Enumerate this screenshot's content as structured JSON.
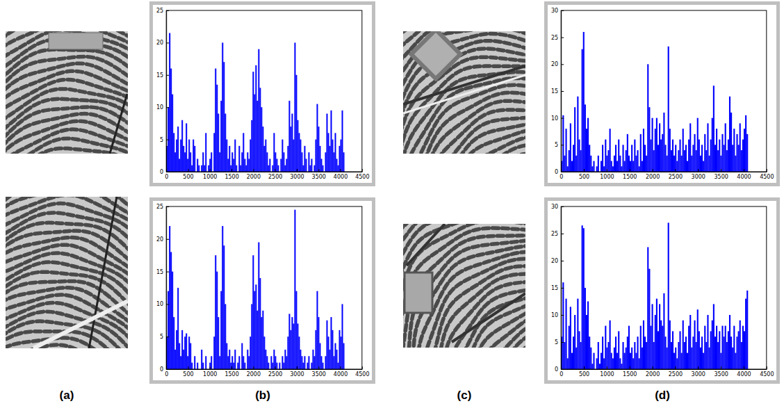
{
  "chart_data": [
    {
      "type": "histogram",
      "color": "#0000ff",
      "grid": false,
      "xlim": [
        0,
        4500
      ],
      "xticks": [
        0,
        500,
        1000,
        1500,
        2000,
        2500,
        3000,
        3500,
        4000,
        4500
      ],
      "ylim": [
        0,
        25
      ],
      "yticks": [
        0,
        5,
        10,
        15,
        20,
        25
      ],
      "bins": [
        0,
        32,
        64,
        96,
        128,
        160,
        192,
        224,
        256,
        288,
        320,
        352,
        384,
        416,
        448,
        480,
        512,
        544,
        576,
        608,
        640,
        672,
        704,
        736,
        768,
        800,
        832,
        864,
        896,
        928,
        960,
        992,
        1024,
        1056,
        1088,
        1120,
        1152,
        1184,
        1216,
        1248,
        1280,
        1312,
        1344,
        1376,
        1408,
        1440,
        1472,
        1504,
        1536,
        1568,
        1600,
        1632,
        1664,
        1696,
        1728,
        1760,
        1792,
        1824,
        1856,
        1888,
        1920,
        1952,
        1984,
        2016,
        2048,
        2080,
        2112,
        2144,
        2176,
        2208,
        2240,
        2272,
        2304,
        2336,
        2368,
        2400,
        2432,
        2464,
        2496,
        2528,
        2560,
        2592,
        2624,
        2656,
        2688,
        2720,
        2752,
        2784,
        2816,
        2848,
        2880,
        2912,
        2944,
        2976,
        3008,
        3040,
        3072,
        3104,
        3136,
        3168,
        3200,
        3232,
        3264,
        3296,
        3328,
        3360,
        3392,
        3424,
        3456,
        3488,
        3520,
        3552,
        3584,
        3616,
        3648,
        3680,
        3712,
        3744,
        3776,
        3808,
        3840,
        3872,
        3904,
        3936,
        3968,
        4000,
        4032,
        4064,
        4096
      ],
      "values": [
        4,
        10,
        21.5,
        16,
        12,
        6,
        3,
        5,
        7,
        2,
        5,
        8,
        4,
        3,
        7.5,
        2,
        5,
        3,
        1,
        5,
        4,
        0,
        2,
        1,
        0,
        1,
        3,
        1,
        6,
        0,
        1,
        2,
        3,
        0,
        6,
        16,
        13.5,
        9,
        3,
        11,
        20,
        17,
        9,
        5,
        2,
        4,
        1,
        3,
        2,
        5,
        1,
        0,
        4,
        1,
        3,
        6,
        2,
        1,
        3,
        2,
        5,
        8,
        15.5,
        12,
        16.5,
        11,
        19,
        13,
        10,
        7,
        4,
        5,
        3,
        1,
        2,
        0,
        1,
        6,
        3,
        2,
        1,
        0,
        2,
        5,
        3,
        1,
        2,
        4,
        11,
        7,
        9,
        5,
        20,
        15,
        8,
        6,
        5,
        3,
        1,
        4,
        2,
        0,
        3,
        1,
        2,
        0,
        1,
        5,
        10.5,
        7,
        4,
        2,
        1,
        0,
        3,
        9,
        6,
        4,
        9.5,
        5,
        3,
        6,
        2,
        1,
        4,
        5,
        9.5,
        3
      ]
    },
    {
      "type": "histogram",
      "color": "#0000ff",
      "grid": false,
      "xlim": [
        0,
        4500
      ],
      "xticks": [
        0,
        500,
        1000,
        1500,
        2000,
        2500,
        3000,
        3500,
        4000,
        4500
      ],
      "ylim": [
        0,
        25
      ],
      "yticks": [
        0,
        5,
        10,
        15,
        20,
        25
      ],
      "bins": [
        0,
        32,
        64,
        96,
        128,
        160,
        192,
        224,
        256,
        288,
        320,
        352,
        384,
        416,
        448,
        480,
        512,
        544,
        576,
        608,
        640,
        672,
        704,
        736,
        768,
        800,
        832,
        864,
        896,
        928,
        960,
        992,
        1024,
        1056,
        1088,
        1120,
        1152,
        1184,
        1216,
        1248,
        1280,
        1312,
        1344,
        1376,
        1408,
        1440,
        1472,
        1504,
        1536,
        1568,
        1600,
        1632,
        1664,
        1696,
        1728,
        1760,
        1792,
        1824,
        1856,
        1888,
        1920,
        1952,
        1984,
        2016,
        2048,
        2080,
        2112,
        2144,
        2176,
        2208,
        2240,
        2272,
        2304,
        2336,
        2368,
        2400,
        2432,
        2464,
        2496,
        2528,
        2560,
        2592,
        2624,
        2656,
        2688,
        2720,
        2752,
        2784,
        2816,
        2848,
        2880,
        2912,
        2944,
        2976,
        3008,
        3040,
        3072,
        3104,
        3136,
        3168,
        3200,
        3232,
        3264,
        3296,
        3328,
        3360,
        3392,
        3424,
        3456,
        3488,
        3520,
        3552,
        3584,
        3616,
        3648,
        3680,
        3712,
        3744,
        3776,
        3808,
        3840,
        3872,
        3904,
        3936,
        3968,
        4000,
        4032,
        4064,
        4096
      ],
      "values": [
        5,
        12,
        22,
        18,
        15,
        8,
        3,
        6,
        12.5,
        4,
        2,
        6,
        3,
        5,
        5.5,
        2,
        5,
        4,
        1,
        0,
        2,
        0,
        1,
        0,
        0,
        3,
        1,
        0,
        2,
        0,
        0,
        1,
        2,
        0,
        5,
        17.5,
        15,
        8,
        2,
        12,
        22,
        19,
        10,
        4,
        2,
        3,
        1,
        2,
        1,
        3,
        0,
        1,
        2,
        0,
        4,
        2,
        1,
        0,
        3,
        2,
        5,
        10,
        17.5,
        12,
        13,
        9,
        19.5,
        14,
        8,
        9,
        5,
        3,
        2,
        1,
        0,
        2,
        1,
        3,
        2,
        1,
        0,
        1,
        0,
        2,
        1,
        3,
        2,
        5,
        8.5,
        6,
        8,
        7,
        24.5,
        12,
        7,
        5,
        3,
        2,
        1,
        2,
        0,
        1,
        2,
        0,
        1,
        3,
        2,
        6,
        12,
        8,
        4,
        2,
        1,
        0,
        2,
        7.5,
        5,
        3,
        8,
        6,
        2,
        4,
        3,
        1,
        6,
        5,
        10,
        4
      ]
    },
    {
      "type": "histogram",
      "color": "#0000ff",
      "grid": false,
      "xlim": [
        0,
        4500
      ],
      "xticks": [
        0,
        500,
        1000,
        1500,
        2000,
        2500,
        3000,
        3500,
        4000,
        4500
      ],
      "ylim": [
        0,
        30
      ],
      "yticks": [
        0,
        5,
        10,
        15,
        20,
        25,
        30
      ],
      "bins": [
        0,
        32,
        64,
        96,
        128,
        160,
        192,
        224,
        256,
        288,
        320,
        352,
        384,
        416,
        448,
        480,
        512,
        544,
        576,
        608,
        640,
        672,
        704,
        736,
        768,
        800,
        832,
        864,
        896,
        928,
        960,
        992,
        1024,
        1056,
        1088,
        1120,
        1152,
        1184,
        1216,
        1248,
        1280,
        1312,
        1344,
        1376,
        1408,
        1440,
        1472,
        1504,
        1536,
        1568,
        1600,
        1632,
        1664,
        1696,
        1728,
        1760,
        1792,
        1824,
        1856,
        1888,
        1920,
        1952,
        1984,
        2016,
        2048,
        2080,
        2112,
        2144,
        2176,
        2208,
        2240,
        2272,
        2304,
        2336,
        2368,
        2400,
        2432,
        2464,
        2496,
        2528,
        2560,
        2592,
        2624,
        2656,
        2688,
        2720,
        2752,
        2784,
        2816,
        2848,
        2880,
        2912,
        2944,
        2976,
        3008,
        3040,
        3072,
        3104,
        3136,
        3168,
        3200,
        3232,
        3264,
        3296,
        3328,
        3360,
        3392,
        3424,
        3456,
        3488,
        3520,
        3552,
        3584,
        3616,
        3648,
        3680,
        3712,
        3744,
        3776,
        3808,
        3840,
        3872,
        3904,
        3936,
        3968,
        4000,
        4032,
        4064,
        4096
      ],
      "values": [
        2,
        10.5,
        3,
        8,
        1,
        4,
        9,
        2,
        5,
        12,
        3,
        14,
        6,
        4,
        22.8,
        26,
        12.5,
        8,
        10,
        5,
        3,
        1,
        2,
        0,
        1,
        3,
        0,
        2,
        5,
        1,
        6,
        3,
        4,
        8,
        2,
        1,
        3,
        5,
        2,
        6,
        3,
        1,
        5,
        2,
        4,
        7,
        3,
        2,
        5,
        2,
        6,
        3,
        4,
        1,
        7,
        2,
        8,
        5,
        3,
        20,
        12,
        6,
        10,
        4,
        8,
        10,
        5,
        9,
        6,
        7,
        11,
        5,
        3,
        23.3,
        8,
        4,
        6,
        3,
        5,
        2,
        4,
        6,
        3,
        8,
        4,
        5,
        2,
        6,
        9,
        3,
        5,
        7,
        4,
        10,
        6,
        3,
        5,
        2,
        7,
        4,
        9,
        3,
        6,
        10,
        16,
        5,
        8,
        4,
        6,
        3,
        7,
        5,
        9,
        4,
        6,
        14,
        11,
        5,
        8,
        3,
        7,
        5,
        9,
        4,
        6,
        8,
        10.5,
        7
      ]
    },
    {
      "type": "histogram",
      "color": "#0000ff",
      "grid": false,
      "xlim": [
        0,
        4500
      ],
      "xticks": [
        0,
        500,
        1000,
        1500,
        2000,
        2500,
        3000,
        3500,
        4000,
        4500
      ],
      "ylim": [
        0,
        30
      ],
      "yticks": [
        0,
        5,
        10,
        15,
        20,
        25,
        30
      ],
      "bins": [
        0,
        32,
        64,
        96,
        128,
        160,
        192,
        224,
        256,
        288,
        320,
        352,
        384,
        416,
        448,
        480,
        512,
        544,
        576,
        608,
        640,
        672,
        704,
        736,
        768,
        800,
        832,
        864,
        896,
        928,
        960,
        992,
        1024,
        1056,
        1088,
        1120,
        1152,
        1184,
        1216,
        1248,
        1280,
        1312,
        1344,
        1376,
        1408,
        1440,
        1472,
        1504,
        1536,
        1568,
        1600,
        1632,
        1664,
        1696,
        1728,
        1760,
        1792,
        1824,
        1856,
        1888,
        1920,
        1952,
        1984,
        2016,
        2048,
        2080,
        2112,
        2144,
        2176,
        2208,
        2240,
        2272,
        2304,
        2336,
        2368,
        2400,
        2432,
        2464,
        2496,
        2528,
        2560,
        2592,
        2624,
        2656,
        2688,
        2720,
        2752,
        2784,
        2816,
        2848,
        2880,
        2912,
        2944,
        2976,
        3008,
        3040,
        3072,
        3104,
        3136,
        3168,
        3200,
        3232,
        3264,
        3296,
        3328,
        3360,
        3392,
        3424,
        3456,
        3488,
        3520,
        3552,
        3584,
        3616,
        3648,
        3680,
        3712,
        3744,
        3776,
        3808,
        3840,
        3872,
        3904,
        3936,
        3968,
        4000,
        4032,
        4064,
        4096
      ],
      "values": [
        6,
        16,
        5,
        13,
        2,
        8,
        11.5,
        3,
        6,
        10,
        4,
        13,
        7,
        5,
        26.5,
        26,
        15,
        10,
        12.5,
        6,
        4,
        1,
        3,
        0,
        2,
        5,
        1,
        3,
        6,
        2,
        8,
        4,
        5,
        9,
        3,
        2,
        4,
        6,
        3,
        7,
        2,
        1,
        5,
        3,
        4,
        6,
        8,
        3,
        4,
        2,
        5,
        3,
        6,
        2,
        8,
        4,
        9,
        6,
        5,
        22.5,
        18.5,
        8,
        12,
        5,
        10,
        13,
        7,
        12,
        9,
        8,
        14,
        6,
        4,
        27,
        9,
        5,
        7,
        3,
        4,
        2,
        5,
        7,
        3,
        9,
        5,
        6,
        3,
        8,
        10,
        4,
        6,
        9,
        5,
        11,
        7,
        4,
        6,
        3,
        8,
        5,
        10,
        4,
        7,
        9,
        12,
        6,
        8,
        5,
        7,
        3,
        8,
        6,
        8,
        5,
        7,
        10,
        6,
        4,
        8,
        3,
        6,
        7,
        9,
        5,
        8,
        7,
        13,
        14.5
      ]
    }
  ],
  "panel_labels": [
    "(a)",
    "(b)",
    "(c)",
    "(d)"
  ]
}
